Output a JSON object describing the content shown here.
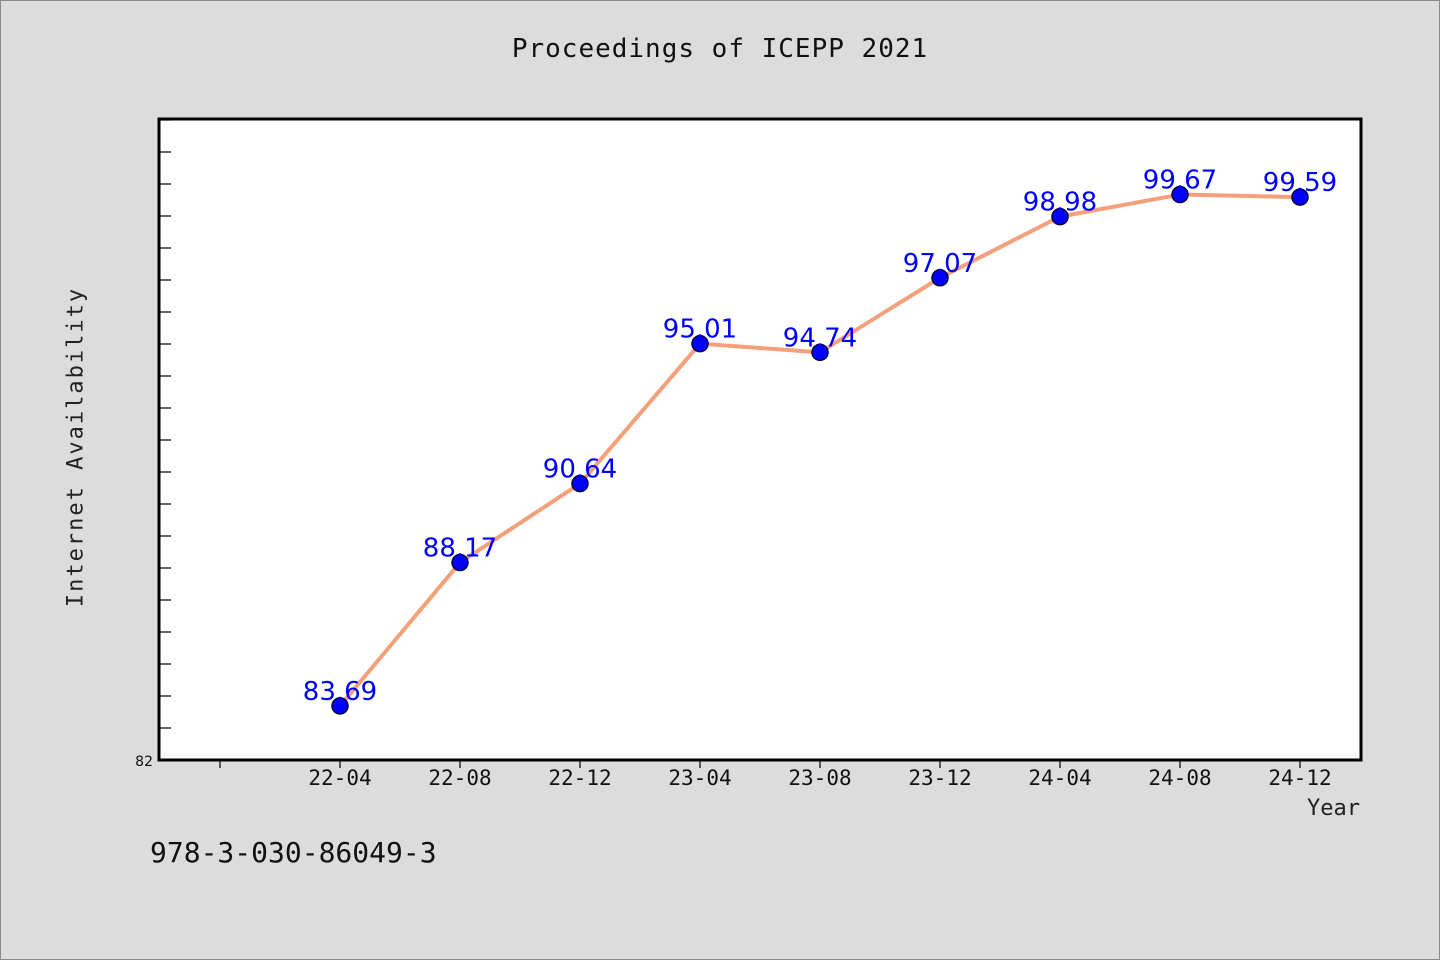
{
  "title": "Proceedings of ICEPP 2021",
  "footer_text": "978-3-030-86049-3",
  "chart_data": {
    "type": "line",
    "title": "Proceedings of ICEPP 2021",
    "xlabel": "Year",
    "ylabel": "Internet Availability",
    "categories": [
      "22-04",
      "22-08",
      "22-12",
      "23-04",
      "23-08",
      "23-12",
      "24-04",
      "24-08",
      "24-12"
    ],
    "series": [
      {
        "values": [
          83.69,
          88.17,
          90.64,
          95.01,
          94.74,
          97.07,
          98.98,
          99.67,
          99.59
        ],
        "data_labels": [
          "83.69",
          "88.17",
          "90.64",
          "95.01",
          "94.74",
          "97.07",
          "98.98",
          "99.67",
          "99.59"
        ]
      }
    ],
    "ylim": [
      82,
      102
    ],
    "ymin_label": "82",
    "grid": false,
    "line_color": "#f4a07a",
    "marker_color": "#0000ff",
    "label_color": "#0000ff"
  }
}
